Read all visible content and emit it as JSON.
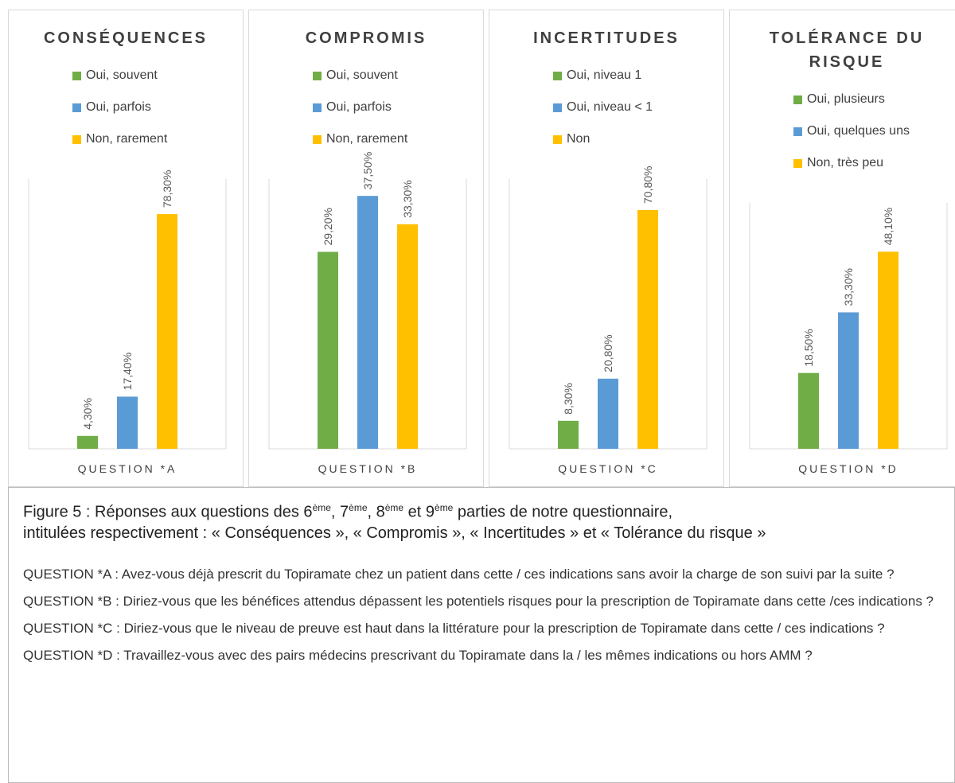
{
  "chart_data": [
    {
      "type": "bar",
      "title": "CONSÉQUENCES",
      "categories": [
        "QUESTION *A"
      ],
      "ylim": [
        0,
        90
      ],
      "series": [
        {
          "name": "Oui, souvent",
          "color": "#70ad47",
          "values": [
            4.3
          ],
          "value_labels": [
            "4,30%"
          ]
        },
        {
          "name": "Oui, parfois",
          "color": "#5b9bd5",
          "values": [
            17.4
          ],
          "value_labels": [
            "17,40%"
          ]
        },
        {
          "name": "Non, rarement",
          "color": "#ffc000",
          "values": [
            78.3
          ],
          "value_labels": [
            "78,30%"
          ]
        }
      ]
    },
    {
      "type": "bar",
      "title": "COMPROMIS",
      "categories": [
        "QUESTION *B"
      ],
      "ylim": [
        0,
        40
      ],
      "series": [
        {
          "name": "Oui, souvent",
          "color": "#70ad47",
          "values": [
            29.2
          ],
          "value_labels": [
            "29,20%"
          ]
        },
        {
          "name": "Oui, parfois",
          "color": "#5b9bd5",
          "values": [
            37.5
          ],
          "value_labels": [
            "37,50%"
          ]
        },
        {
          "name": "Non, rarement",
          "color": "#ffc000",
          "values": [
            33.3
          ],
          "value_labels": [
            "33,30%"
          ]
        }
      ]
    },
    {
      "type": "bar",
      "title": "INCERTITUDES",
      "categories": [
        "QUESTION *C"
      ],
      "ylim": [
        0,
        80
      ],
      "series": [
        {
          "name": "Oui, niveau 1",
          "color": "#70ad47",
          "values": [
            8.3
          ],
          "value_labels": [
            "8,30%"
          ]
        },
        {
          "name": "Oui, niveau < 1",
          "color": "#5b9bd5",
          "values": [
            20.8
          ],
          "value_labels": [
            "20,80%"
          ]
        },
        {
          "name": "Non",
          "color": "#ffc000",
          "values": [
            70.8
          ],
          "value_labels": [
            "70,80%"
          ]
        }
      ]
    },
    {
      "type": "bar",
      "title": "TOLÉRANCE DU RISQUE",
      "categories": [
        "QUESTION *D"
      ],
      "ylim": [
        0,
        60
      ],
      "series": [
        {
          "name": "Oui, plusieurs",
          "color": "#70ad47",
          "values": [
            18.5
          ],
          "value_labels": [
            "18,50%"
          ]
        },
        {
          "name": "Oui, quelques uns",
          "color": "#5b9bd5",
          "values": [
            33.3
          ],
          "value_labels": [
            "33,30%"
          ]
        },
        {
          "name": "Non, très peu",
          "color": "#ffc000",
          "values": [
            48.1
          ],
          "value_labels": [
            "48,10%"
          ]
        }
      ]
    }
  ],
  "caption": {
    "lines": [
      [
        "Figure 5 : Réponses aux questions des 6",
        {
          "sup": "ème"
        },
        ", 7",
        {
          "sup": "ème"
        },
        ", 8",
        {
          "sup": "ème"
        },
        " et 9",
        {
          "sup": "ème"
        },
        " parties de notre questionnaire,"
      ],
      [
        "intitulées respectivement : « Conséquences », « Compromis », « Incertitudes » et « Tolérance du risque »"
      ]
    ]
  },
  "questions": [
    "QUESTION *A : Avez-vous déjà prescrit du Topiramate chez un patient dans cette / ces indications sans avoir la charge de son suivi par la suite ?",
    "QUESTION *B : Diriez-vous que les bénéfices attendus dépassent les potentiels risques pour la prescription de Topiramate dans cette /ces indications ?",
    "QUESTION *C : Diriez-vous que le niveau de preuve est haut dans la littérature pour la prescription de Topiramate dans cette / ces indications ?",
    "QUESTION *D : Travaillez-vous avec des pairs médecins prescrivant du Topiramate dans la / les mêmes indications ou hors AMM ?"
  ]
}
